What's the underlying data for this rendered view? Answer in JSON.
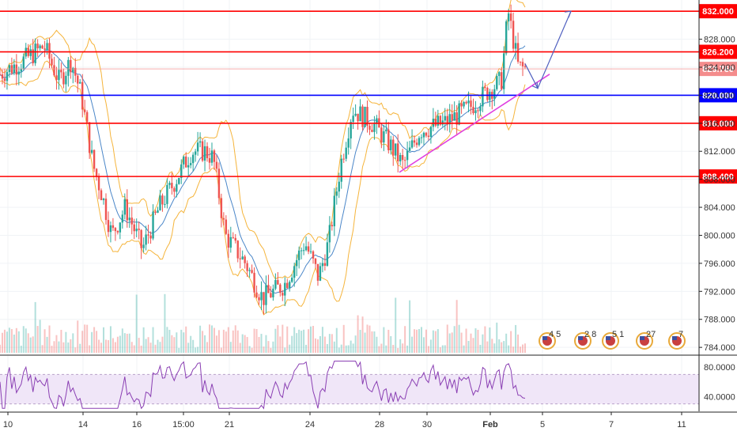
{
  "chart_data": {
    "type": "candlestick",
    "title": "",
    "price_axis": {
      "ticks": [
        "828.000",
        "824.000",
        "820.000",
        "816.000",
        "812.000",
        "808.000",
        "804.000",
        "800.000",
        "796.000",
        "792.000",
        "788.000",
        "784.000"
      ],
      "range": [
        783.0,
        833.6
      ]
    },
    "rsi_axis": {
      "ticks": [
        "80.0000",
        "40.0000"
      ],
      "band": [
        30,
        70
      ]
    },
    "time_axis": {
      "ticks": [
        "10",
        "14",
        "16",
        "15:00",
        "21",
        "24",
        "28",
        "30",
        "Feb",
        "5",
        "7",
        "11"
      ]
    },
    "horizontal_lines": [
      {
        "label": "832.000",
        "value": 832.0,
        "color": "#ff0000"
      },
      {
        "label": "826.200",
        "value": 826.2,
        "color": "#ff0000"
      },
      {
        "label": "820.000",
        "value": 820.0,
        "color": "#0000ff"
      },
      {
        "label": "816.000",
        "value": 816.0,
        "color": "#ff0000"
      },
      {
        "label": "808.400",
        "value": 808.4,
        "color": "#ff0000"
      }
    ],
    "current_price": {
      "label": "823.760",
      "value": 823.76,
      "color": "#f48c8c"
    },
    "trendline": {
      "from_value": 809.0,
      "to_value": 823.0,
      "color": "#e040e0"
    },
    "projection": {
      "from_value": 821.0,
      "to_value": 832.0,
      "color": "#5060c0"
    },
    "event_markers": [
      {
        "label": "4 5"
      },
      {
        "label": "2 8"
      },
      {
        "label": "5 1"
      },
      {
        "label": "27"
      },
      {
        "label": "7"
      }
    ],
    "candles_visible": 224,
    "price_anchors": [
      [
        0,
        823
      ],
      [
        14,
        825
      ],
      [
        26,
        827
      ],
      [
        35,
        822
      ],
      [
        42,
        825
      ],
      [
        48,
        820
      ],
      [
        55,
        810
      ],
      [
        60,
        806
      ],
      [
        66,
        800
      ],
      [
        74,
        804
      ],
      [
        84,
        798
      ],
      [
        94,
        804
      ],
      [
        104,
        808
      ],
      [
        113,
        812
      ],
      [
        121,
        812
      ],
      [
        126,
        811
      ],
      [
        133,
        800
      ],
      [
        145,
        796
      ],
      [
        155,
        791
      ],
      [
        168,
        793
      ],
      [
        180,
        799
      ],
      [
        188,
        794
      ],
      [
        194,
        799
      ],
      [
        201,
        810
      ],
      [
        208,
        818
      ],
      [
        220,
        816
      ],
      [
        230,
        813
      ],
      [
        238,
        810
      ],
      [
        248,
        815
      ],
      [
        262,
        816
      ],
      [
        276,
        818
      ],
      [
        290,
        821
      ],
      [
        296,
        822
      ],
      [
        300,
        832
      ],
      [
        306,
        824
      ],
      [
        310,
        823.8
      ]
    ],
    "colors": {
      "up": "#26a69a",
      "down": "#ef5350",
      "bollinger": "#f5b43b",
      "ma": "#4a86c8",
      "rsi": "#8a3fb3",
      "rsi_band": "#f0e6f8"
    },
    "show_bollinger": true,
    "show_volume": true,
    "show_rsi": true
  }
}
